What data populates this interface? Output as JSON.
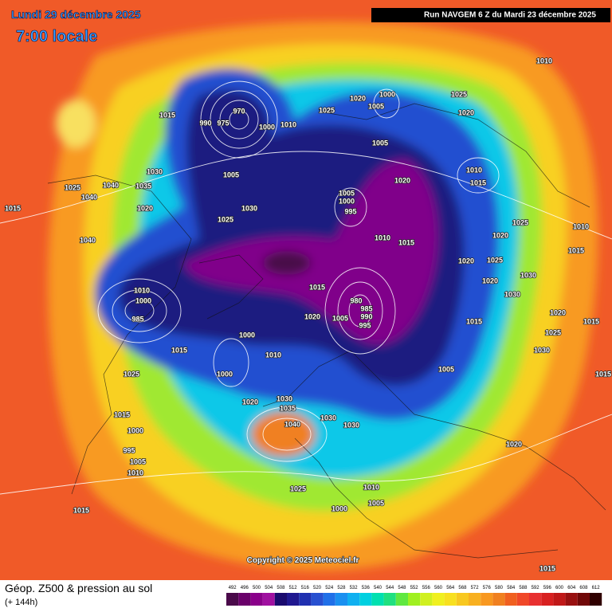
{
  "header": {
    "date": "Lundi 29 décembre 2025",
    "time": "7:00 locale",
    "run": "Run NAVGEM 6 Z du Mardi 23 décembre 2025"
  },
  "map": {
    "copyright": "Copyright © 2025 Meteociel.fr",
    "pressure_labels": [
      970,
      975,
      990,
      1000,
      1010,
      1015,
      1025,
      1020,
      1000,
      1005,
      1025,
      1020,
      1010,
      1005,
      1005,
      1000,
      995,
      1020,
      1010,
      1015,
      1010,
      1015,
      1025,
      1020,
      1015,
      1010,
      1020,
      1025,
      1030,
      1020,
      1030,
      980,
      985,
      990,
      995,
      1005,
      1015,
      1020,
      1015,
      1005,
      1025,
      1020,
      1015,
      1030,
      1030,
      1025,
      1040,
      1035,
      1040,
      1020,
      1015,
      1030,
      1025,
      1040,
      1010,
      1000,
      985,
      1015,
      1025,
      1000,
      1010,
      1000,
      1020,
      1030,
      1035,
      1040,
      1030,
      1030,
      1015,
      1000,
      995,
      1005,
      1010,
      1015,
      1025,
      1010,
      1005,
      1000,
      1020,
      1015,
      1015,
      1005
    ]
  },
  "footer": {
    "title": "Géop. Z500 & pression au sol",
    "lead": "(+ 144h)",
    "scale": {
      "values": [
        492,
        496,
        500,
        504,
        508,
        512,
        516,
        520,
        524,
        528,
        532,
        536,
        540,
        544,
        548,
        552,
        556,
        560,
        564,
        568,
        572,
        576,
        580,
        584,
        588,
        592,
        596,
        600,
        604,
        608,
        612
      ],
      "colors": [
        "#4a0a4a",
        "#6a006a",
        "#8a008a",
        "#a010a0",
        "#1a0a6e",
        "#201890",
        "#2030b0",
        "#2850d0",
        "#2070e8",
        "#1a90f0",
        "#10b0f0",
        "#00d0e0",
        "#00e0b0",
        "#20e080",
        "#60e840",
        "#a0f020",
        "#d0f020",
        "#f0f020",
        "#f8e020",
        "#f8c820",
        "#f8b020",
        "#f89820",
        "#f08020",
        "#f06020",
        "#f04828",
        "#e83030",
        "#d82020",
        "#c01818",
        "#981010",
        "#700808",
        "#300000"
      ]
    }
  }
}
